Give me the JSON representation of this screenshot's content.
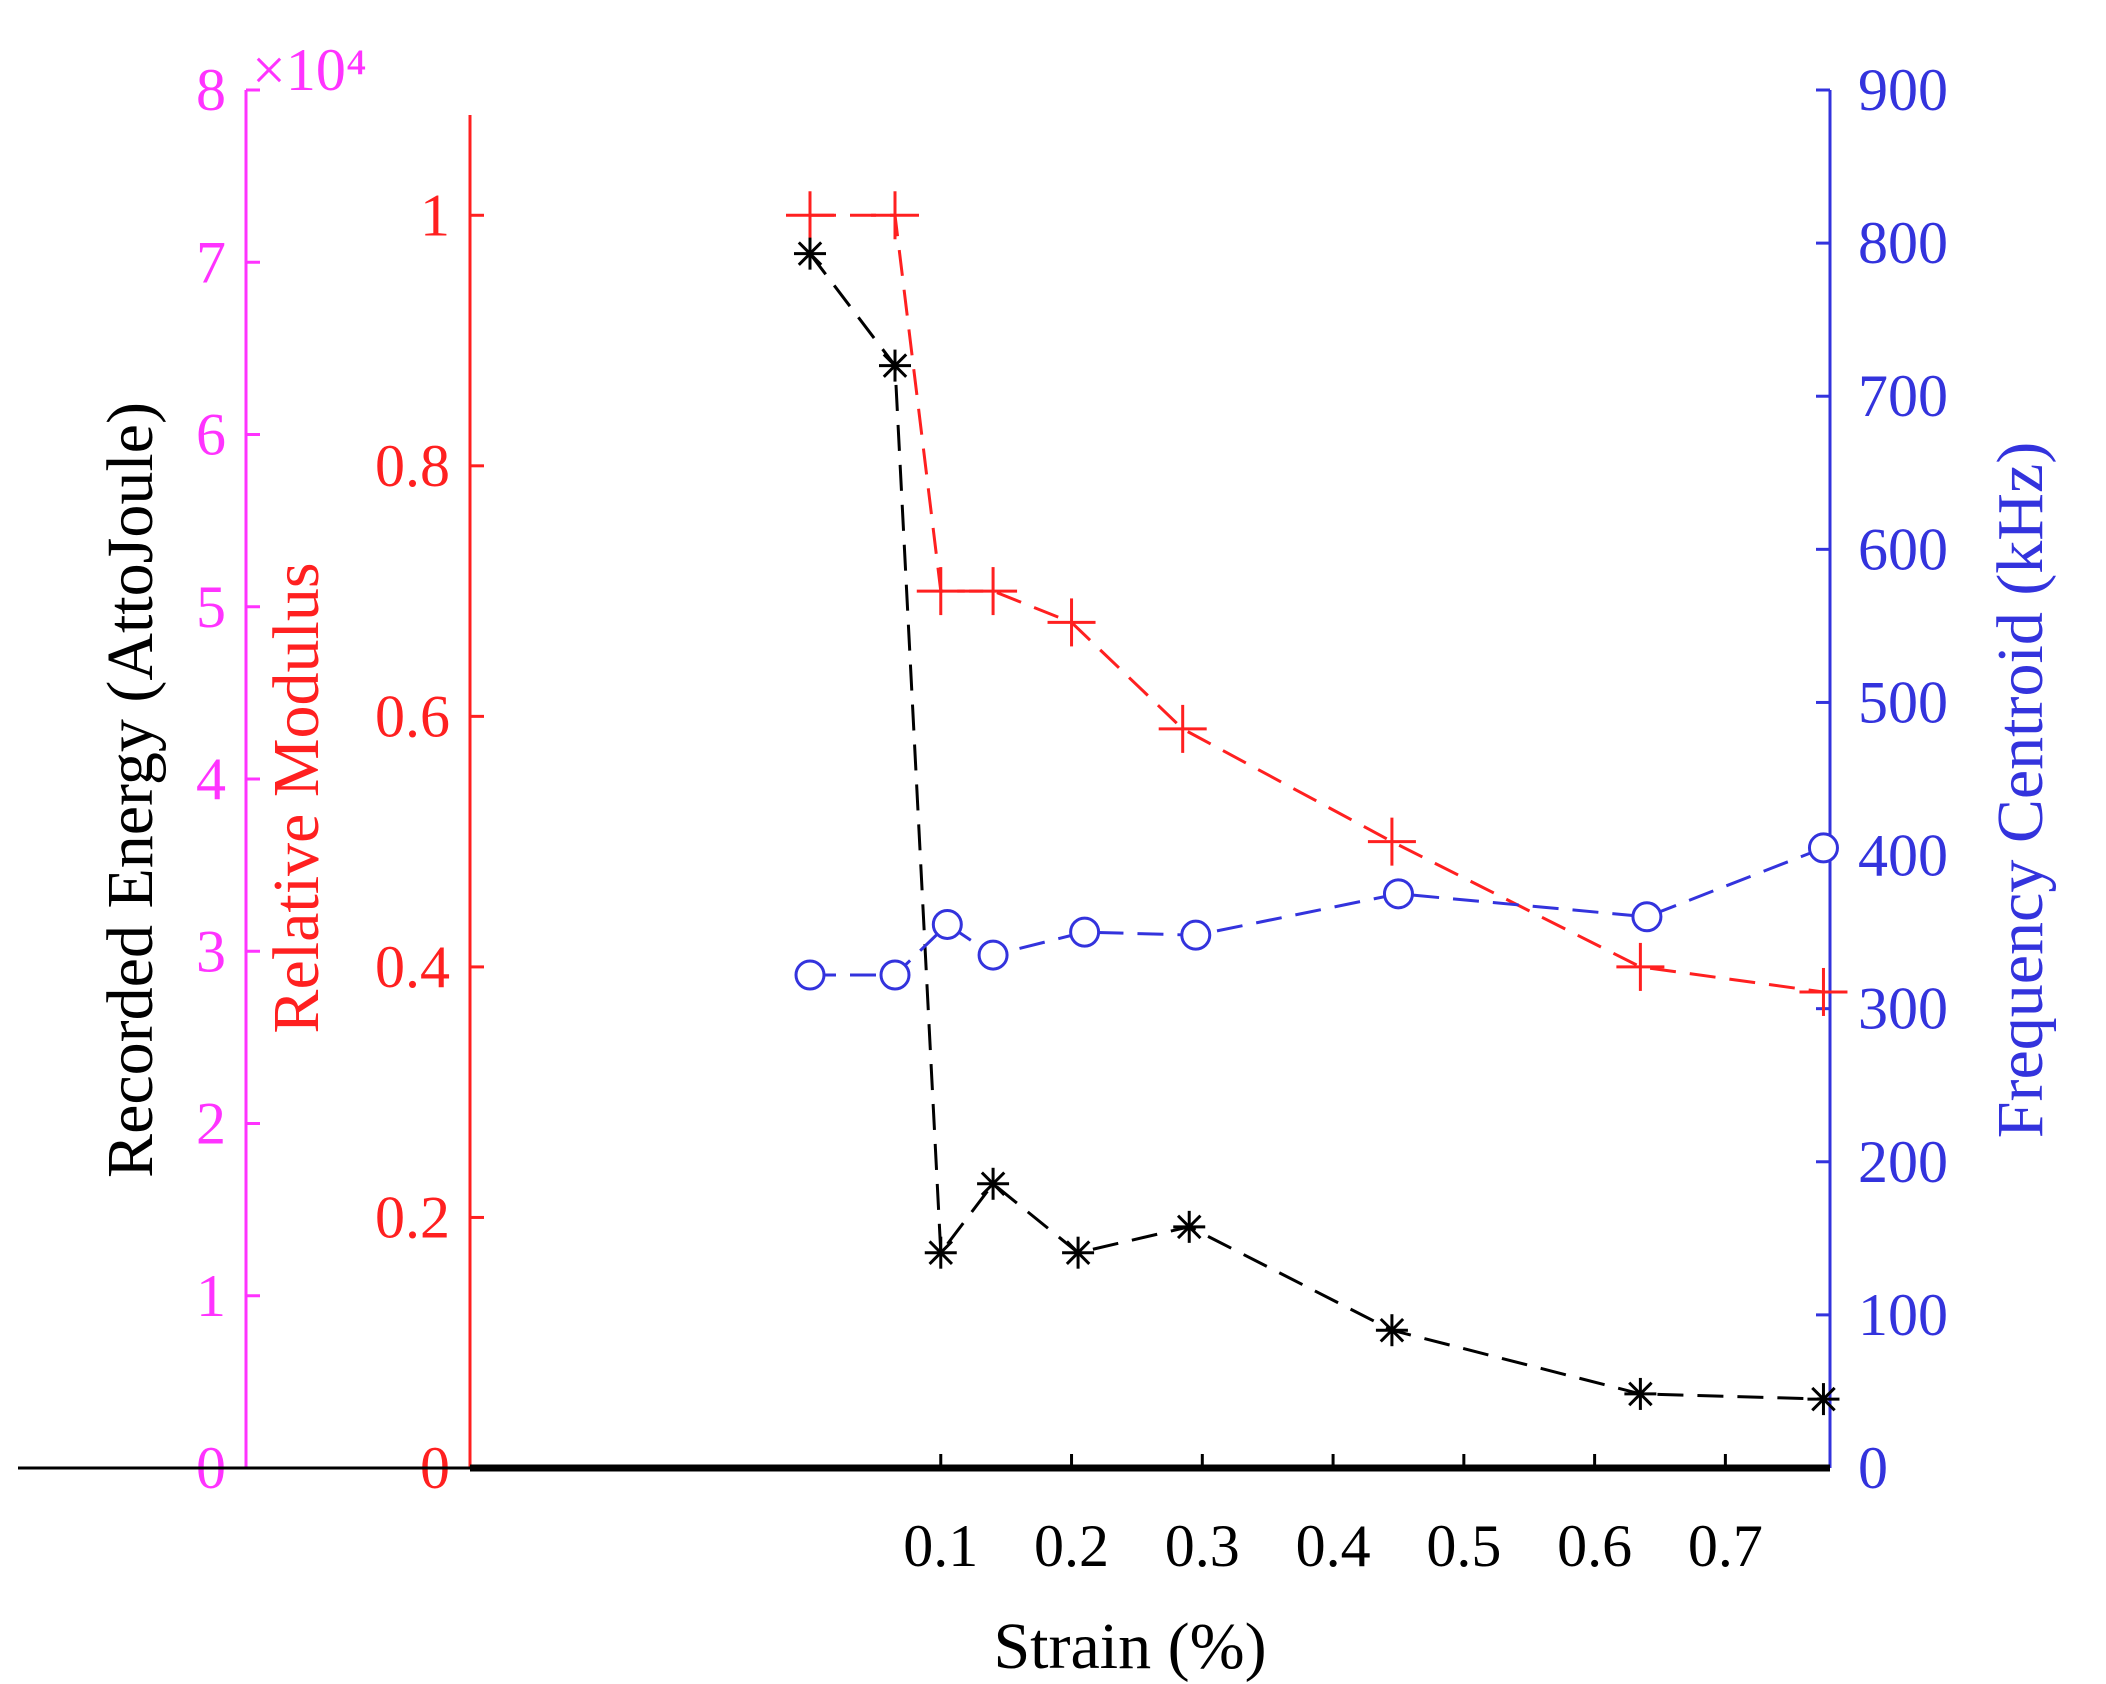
{
  "chart_data": {
    "type": "line",
    "xlabel": "Strain (%)",
    "xlim": [
      -0.26,
      0.78
    ],
    "xticks": [
      0.1,
      0.2,
      0.3,
      0.4,
      0.5,
      0.6,
      0.7
    ],
    "xtick_labels": [
      "0.1",
      "0.2",
      "0.3",
      "0.4",
      "0.5",
      "0.6",
      "0.7"
    ],
    "axes": {
      "energy": {
        "label": "Recorded Energy (AttoJoule)",
        "ylim": [
          0,
          80000
        ],
        "ticks": [
          0,
          10000,
          20000,
          30000,
          40000,
          50000,
          60000,
          70000,
          80000
        ],
        "tick_labels": [
          "0",
          "1",
          "2",
          "3",
          "4",
          "5",
          "6",
          "7",
          "8"
        ],
        "exponent_label": "×10⁴",
        "axis_color": "#ff33ff",
        "label_color": "#000000"
      },
      "modulus": {
        "label": "Relative Modulus",
        "ylim": [
          0,
          1.1
        ],
        "ticks": [
          0,
          0.2,
          0.4,
          0.6,
          0.8,
          1
        ],
        "tick_labels": [
          "0",
          "0.2",
          "0.4",
          "0.6",
          "0.8",
          "1"
        ],
        "color": "#ff2020"
      },
      "frequency": {
        "label": "Frequency Centroid (kHz)",
        "ylim": [
          0,
          900
        ],
        "ticks": [
          0,
          100,
          200,
          300,
          400,
          500,
          600,
          700,
          800,
          900
        ],
        "tick_labels": [
          "0",
          "100",
          "200",
          "300",
          "400",
          "500",
          "600",
          "700",
          "800",
          "900"
        ],
        "color": "#3333dd"
      }
    },
    "series": [
      {
        "name": "Relative Modulus",
        "axis": "modulus",
        "marker": "plus",
        "line": "dashed",
        "color": "#ff2020",
        "x": [
          0.0,
          0.065,
          0.1,
          0.14,
          0.2,
          0.285,
          0.445,
          0.635,
          0.775
        ],
        "y": [
          1.0,
          1.0,
          0.7,
          0.7,
          0.675,
          0.59,
          0.5,
          0.4,
          0.38
        ]
      },
      {
        "name": "Recorded Energy",
        "axis": "energy",
        "marker": "asterisk",
        "line": "dashed",
        "color": "#000000",
        "x": [
          0.0,
          0.065,
          0.1,
          0.14,
          0.205,
          0.29,
          0.445,
          0.635,
          0.775
        ],
        "y": [
          70500,
          64000,
          12500,
          16500,
          12500,
          14000,
          8000,
          4300,
          4000
        ]
      },
      {
        "name": "Frequency Centroid",
        "axis": "frequency",
        "marker": "circle",
        "line": "dashed",
        "color": "#3333dd",
        "x": [
          0.0,
          0.065,
          0.105,
          0.14,
          0.21,
          0.295,
          0.45,
          0.64,
          0.775
        ],
        "y": [
          322,
          322,
          355,
          335,
          350,
          348,
          375,
          360,
          405
        ]
      }
    ]
  }
}
